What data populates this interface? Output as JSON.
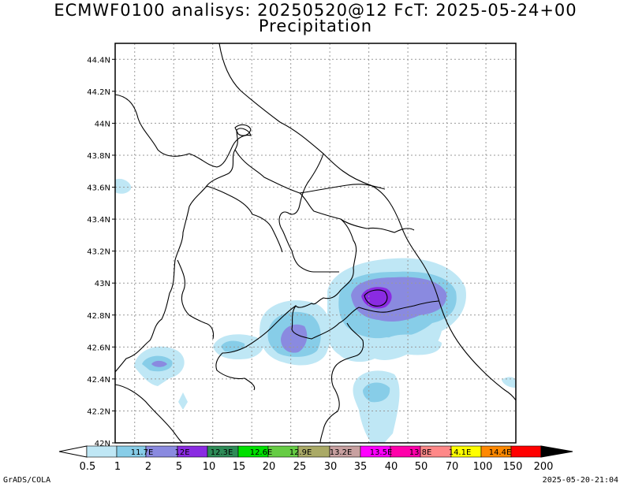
{
  "title": {
    "line1": "ECMWF0100 analisys: 20250520@12 FcT: 2025-05-24+00",
    "line2": "Precipitation"
  },
  "map": {
    "lat_ticks": [
      "42N",
      "42.2N",
      "42.4N",
      "42.6N",
      "42.8N",
      "43N",
      "43.2N",
      "43.4N",
      "43.6N",
      "43.8N",
      "44N",
      "44.2N",
      "44.4N"
    ],
    "lon_ticks": [
      "11.7E",
      "12E",
      "12.3E",
      "12.6E",
      "12.9E",
      "13.2E",
      "13.5E",
      "13.8E",
      "14.1E",
      "14.4E"
    ],
    "lat_range": [
      42.0,
      44.5
    ],
    "lon_range": [
      11.55,
      14.63
    ],
    "grid": "dotted",
    "colors": {
      "frame": "#000000",
      "grid": "#999999",
      "boundaries": "#000000"
    }
  },
  "colorbar": {
    "labels": [
      "0.5",
      "1",
      "2",
      "5",
      "10",
      "15",
      "20",
      "25",
      "30",
      "35",
      "40",
      "50",
      "70",
      "100",
      "150",
      "200"
    ],
    "colors": [
      "#ffffff",
      "#bfe7f5",
      "#87cde8",
      "#8a8ae0",
      "#8a2be2",
      "#2e8b57",
      "#00e000",
      "#66cc44",
      "#aaaa66",
      "#c8a0a0",
      "#ff00ff",
      "#ff00aa",
      "#ff8888",
      "#ffff00",
      "#ff8800",
      "#ff0000",
      "#880000"
    ]
  },
  "footer": {
    "left": "GrADS/COLA",
    "right": "2025-05-20-21:04"
  }
}
